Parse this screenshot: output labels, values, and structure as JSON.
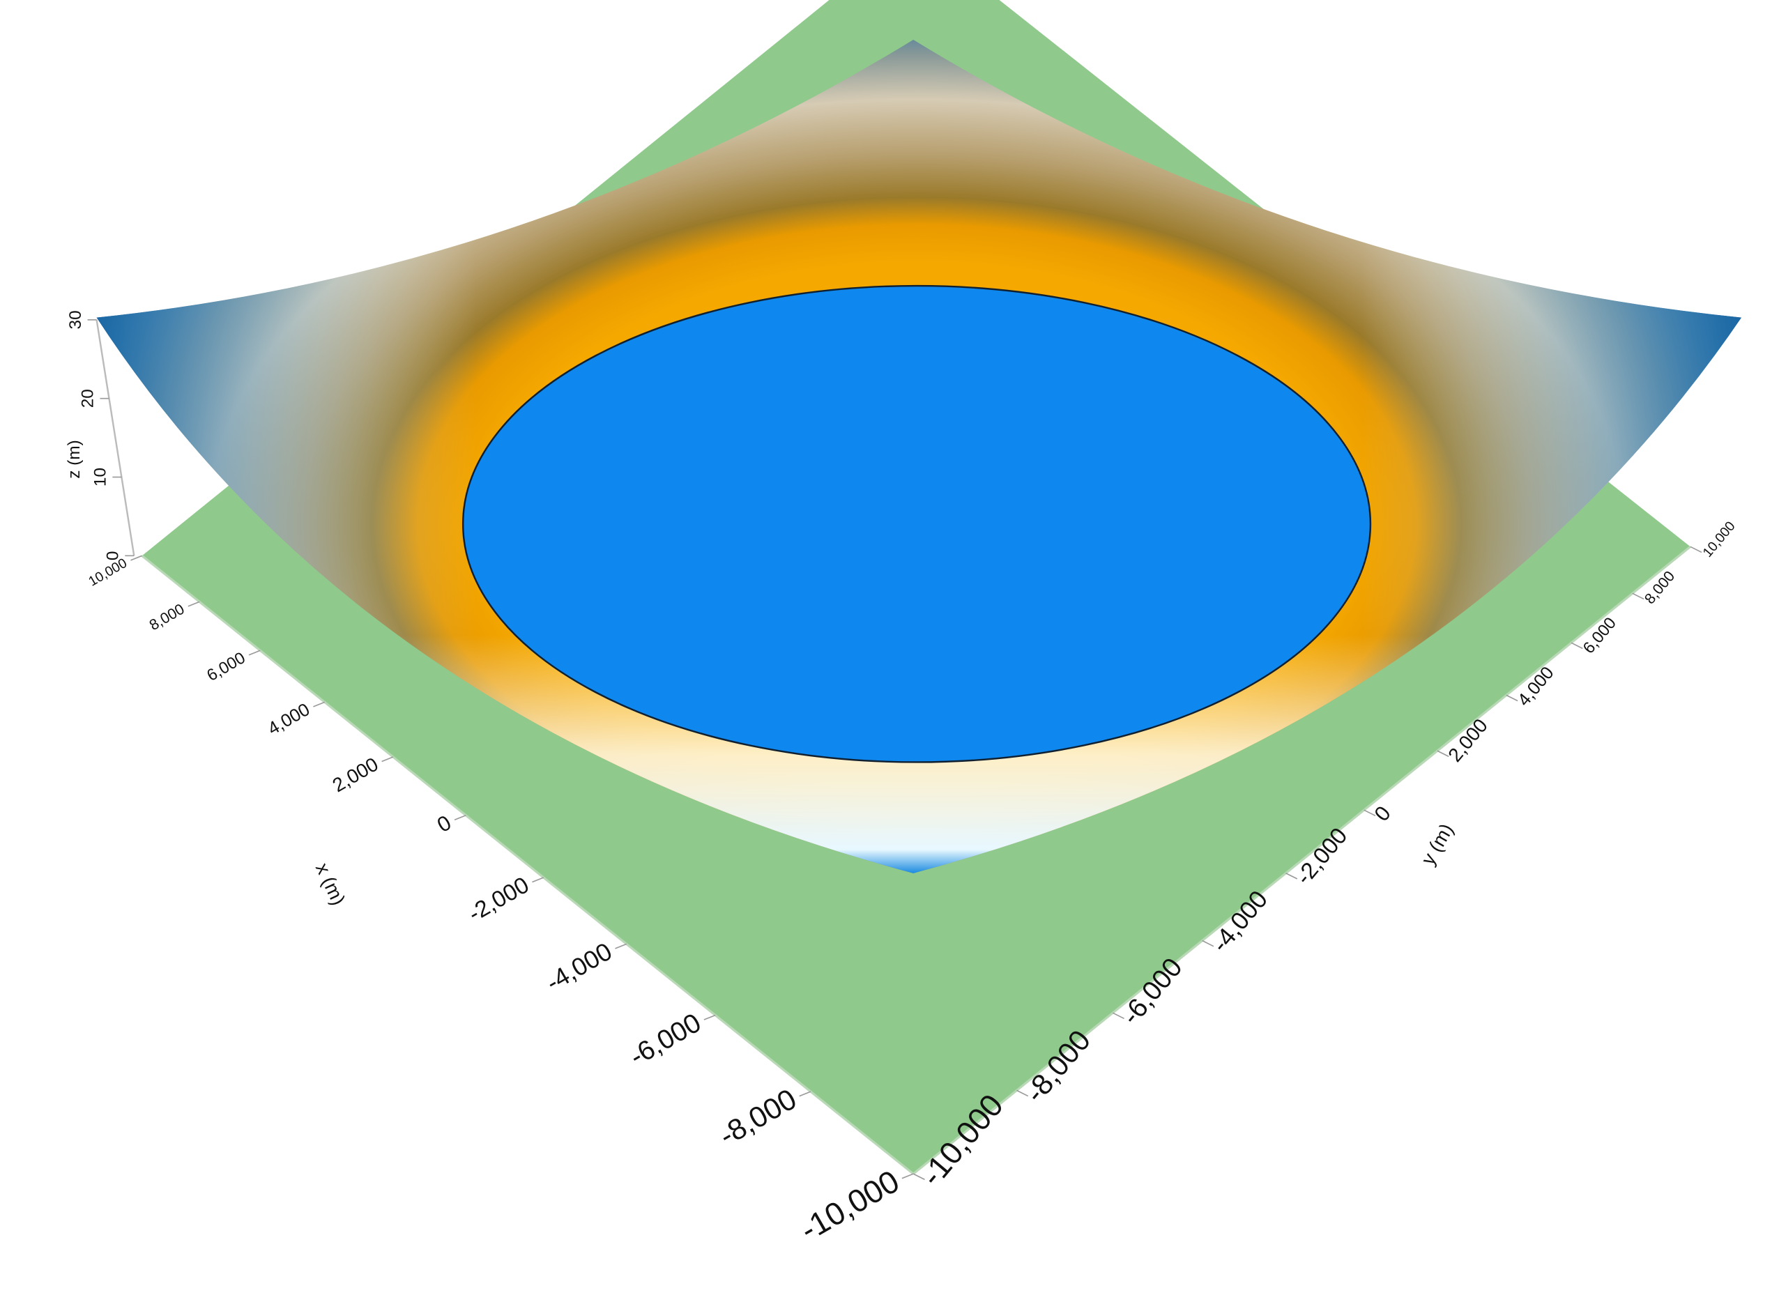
{
  "chart_data": {
    "type": "surface",
    "xlabel": "x (m)",
    "ylabel": "y (m)",
    "zlabel": "z (m)",
    "xlim": [
      -10000,
      10000
    ],
    "xticks": [
      {
        "value": 10000,
        "label": "10,000"
      },
      {
        "value": 8000,
        "label": "8,000"
      },
      {
        "value": 6000,
        "label": "6,000"
      },
      {
        "value": 4000,
        "label": "4,000"
      },
      {
        "value": 2000,
        "label": "2,000"
      },
      0,
      {
        "value": -2000,
        "label": "-2,000"
      },
      {
        "value": -4000,
        "label": "-4,000"
      },
      {
        "value": -6000,
        "label": "-6,000"
      },
      {
        "value": -8000,
        "label": "-8,000"
      },
      {
        "value": -10000,
        "label": "-10,000"
      }
    ],
    "ylim": [
      -10000,
      10000
    ],
    "yticks": [
      {
        "value": -10000,
        "label": "-10,000"
      },
      {
        "value": -8000,
        "label": "-8,000"
      },
      {
        "value": -6000,
        "label": "-6,000"
      },
      {
        "value": -4000,
        "label": "-4,000"
      },
      {
        "value": -2000,
        "label": "-2,000"
      },
      0,
      {
        "value": 2000,
        "label": "2,000"
      },
      {
        "value": 4000,
        "label": "4,000"
      },
      {
        "value": 6000,
        "label": "6,000"
      },
      {
        "value": 8000,
        "label": "8,000"
      },
      {
        "value": 10000,
        "label": "10,000"
      }
    ],
    "zlim": [
      0,
      30
    ],
    "zticks": [
      0,
      10,
      20,
      30
    ]
  }
}
